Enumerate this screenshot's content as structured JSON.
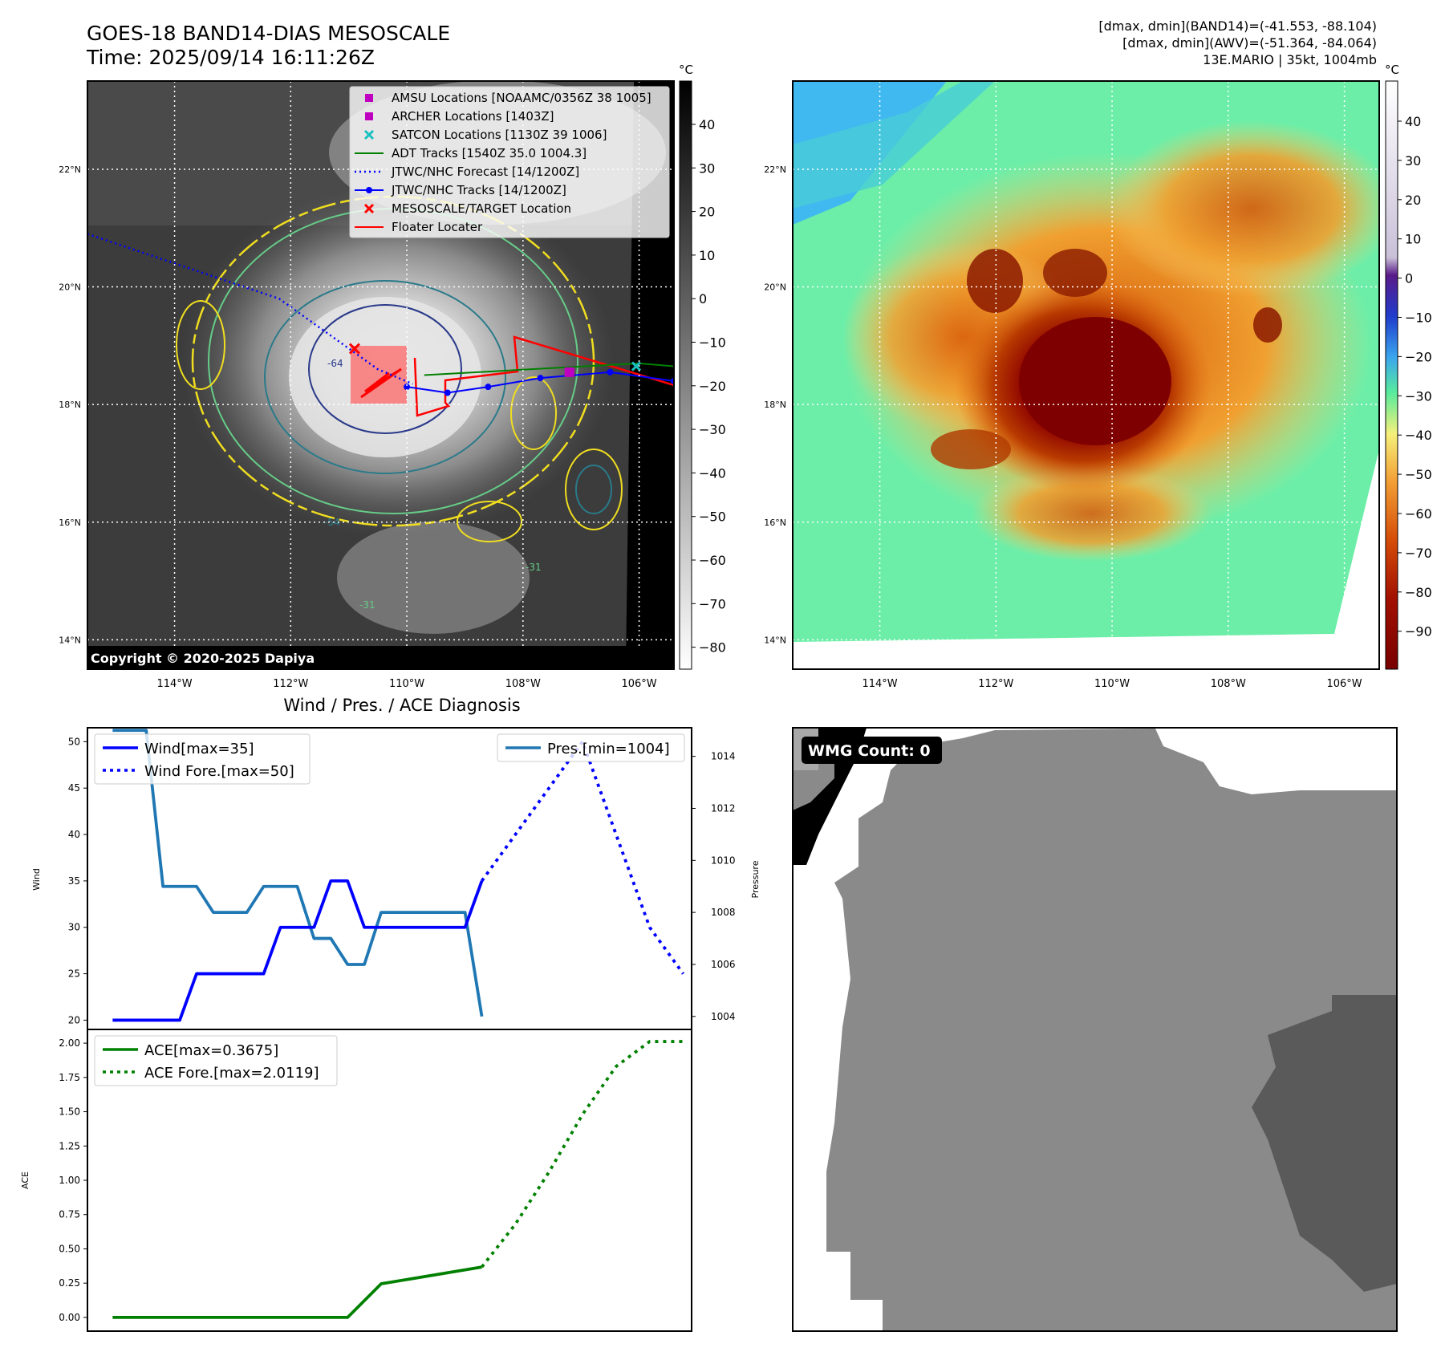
{
  "header": {
    "title_line1": "GOES-18 BAND14-DIAS MESOSCALE",
    "title_line2": "Time: 2025/09/14 16:11:26Z",
    "info_line1": "[dmax, dmin](BAND14)=(-41.553, -88.104)",
    "info_line2": "[dmax, dmin](AWV)=(-51.364, -84.064)",
    "info_line3": "13E.MARIO | 35kt, 1004mb"
  },
  "map": {
    "lon_labels": [
      "114°W",
      "112°W",
      "110°W",
      "108°W",
      "106°W"
    ],
    "lat_labels": [
      "22°N",
      "20°N",
      "18°N",
      "16°N",
      "14°N"
    ],
    "lon_values": [
      -114,
      -112,
      -110,
      -108,
      -106
    ],
    "lat_values": [
      22,
      20,
      18,
      16,
      14
    ],
    "lon_range": [
      -115.5,
      -105.4
    ],
    "lat_range": [
      13.5,
      23.5
    ],
    "copyright": "Copyright © 2020-2025 Dapiya",
    "colorbar_unit": "°C",
    "colorbar_left_ticks": [
      "40",
      "30",
      "20",
      "10",
      "0",
      "−10",
      "−20",
      "−30",
      "−40",
      "−50",
      "−60",
      "−70",
      "−80"
    ],
    "colorbar_right_ticks": [
      "40",
      "30",
      "20",
      "10",
      "0",
      "−10",
      "−20",
      "−30",
      "−40",
      "−50",
      "−60",
      "−70",
      "−80",
      "−90"
    ],
    "legend": [
      {
        "label": "AMSU Locations [NOAAMC/0356Z 38 1005]",
        "marker": "square",
        "color": "#c000c0"
      },
      {
        "label": "ARCHER Locations [1403Z]",
        "marker": "square",
        "color": "#c000c0"
      },
      {
        "label": "SATCON Locations [1130Z 39 1006]",
        "marker": "x",
        "color": "#18c0c0"
      },
      {
        "label": "ADT Tracks [1540Z 35.0 1004.3]",
        "marker": "line",
        "color": "#008000"
      },
      {
        "label": "JTWC/NHC Forecast [14/1200Z]",
        "marker": "dotted",
        "color": "#0000ff"
      },
      {
        "label": "JTWC/NHC Tracks [14/1200Z]",
        "marker": "line-dot",
        "color": "#0000ff"
      },
      {
        "label": "MESOSCALE/TARGET Location",
        "marker": "x",
        "color": "#ff0000"
      },
      {
        "label": "Floater Locater",
        "marker": "line",
        "color": "#ff0000"
      }
    ],
    "contour_labels": [
      "-64",
      "-54",
      "-31",
      "-31"
    ]
  },
  "wmg": {
    "badge": "WMG Count: 0"
  },
  "chart_data": [
    {
      "type": "line",
      "title": "Wind / Pres. / ACE Diagnosis",
      "ylabel": "Wind",
      "ylim": [
        19,
        51.5
      ],
      "y_ticks": [
        20,
        25,
        30,
        35,
        40,
        45,
        50
      ],
      "x_index_range": [
        -1.5,
        34.5
      ],
      "series": [
        {
          "name": "Wind[max=35]",
          "style": "solid",
          "color": "#0000ff",
          "x": [
            0,
            1,
            2,
            3,
            4,
            5,
            6,
            7,
            8,
            9,
            10,
            11,
            12,
            13,
            14,
            15,
            16,
            17,
            18,
            19,
            20,
            21,
            22
          ],
          "values": [
            20,
            20,
            20,
            20,
            20,
            25,
            25,
            25,
            25,
            25,
            30,
            30,
            30,
            35,
            35,
            30,
            30,
            30,
            30,
            30,
            30,
            30,
            35
          ]
        },
        {
          "name": "Wind Fore.[max=50]",
          "style": "dotted",
          "color": "#0000ff",
          "x": [
            22,
            24,
            26,
            28,
            30,
            32,
            34
          ],
          "values": [
            35,
            40,
            45,
            50,
            40,
            30,
            25
          ]
        }
      ],
      "secondary_axis": {
        "ylabel": "Pressure",
        "ylim": [
          1003.5,
          1015.1
        ],
        "y_ticks": [
          1004,
          1006,
          1008,
          1010,
          1012,
          1014
        ],
        "series": [
          {
            "name": "Pres.[min=1004]",
            "style": "solid",
            "color": "#1f77b4",
            "x": [
              0,
              1,
              2,
              3,
              4,
              5,
              6,
              7,
              8,
              9,
              10,
              11,
              12,
              13,
              14,
              15,
              16,
              17,
              18,
              19,
              20,
              21,
              22
            ],
            "values": [
              1015,
              1015,
              1015,
              1009,
              1009,
              1009,
              1008,
              1008,
              1008,
              1009,
              1009,
              1009,
              1007,
              1007,
              1006,
              1006,
              1008,
              1008,
              1008,
              1008,
              1008,
              1008,
              1004
            ]
          }
        ]
      }
    },
    {
      "type": "line",
      "ylabel": "ACE",
      "ylim": [
        -0.1,
        2.1
      ],
      "y_ticks": [
        0.0,
        0.25,
        0.5,
        0.75,
        1.0,
        1.25,
        1.5,
        1.75,
        2.0
      ],
      "y_tick_labels": [
        "0.00",
        "0.25",
        "0.50",
        "0.75",
        "1.00",
        "1.25",
        "1.50",
        "1.75",
        "2.00"
      ],
      "x_index_range": [
        -1.5,
        34.5
      ],
      "series": [
        {
          "name": "ACE[max=0.3675]",
          "style": "solid",
          "color": "#008000",
          "x": [
            0,
            14,
            16,
            22
          ],
          "values": [
            0,
            0,
            0.245,
            0.3675
          ]
        },
        {
          "name": "ACE Fore.[max=2.0119]",
          "style": "dotted",
          "color": "#008000",
          "x": [
            22,
            24,
            26,
            28,
            30,
            32,
            34
          ],
          "values": [
            0.3675,
            0.68,
            1.06,
            1.48,
            1.83,
            2.0119,
            2.0119
          ]
        }
      ]
    }
  ]
}
